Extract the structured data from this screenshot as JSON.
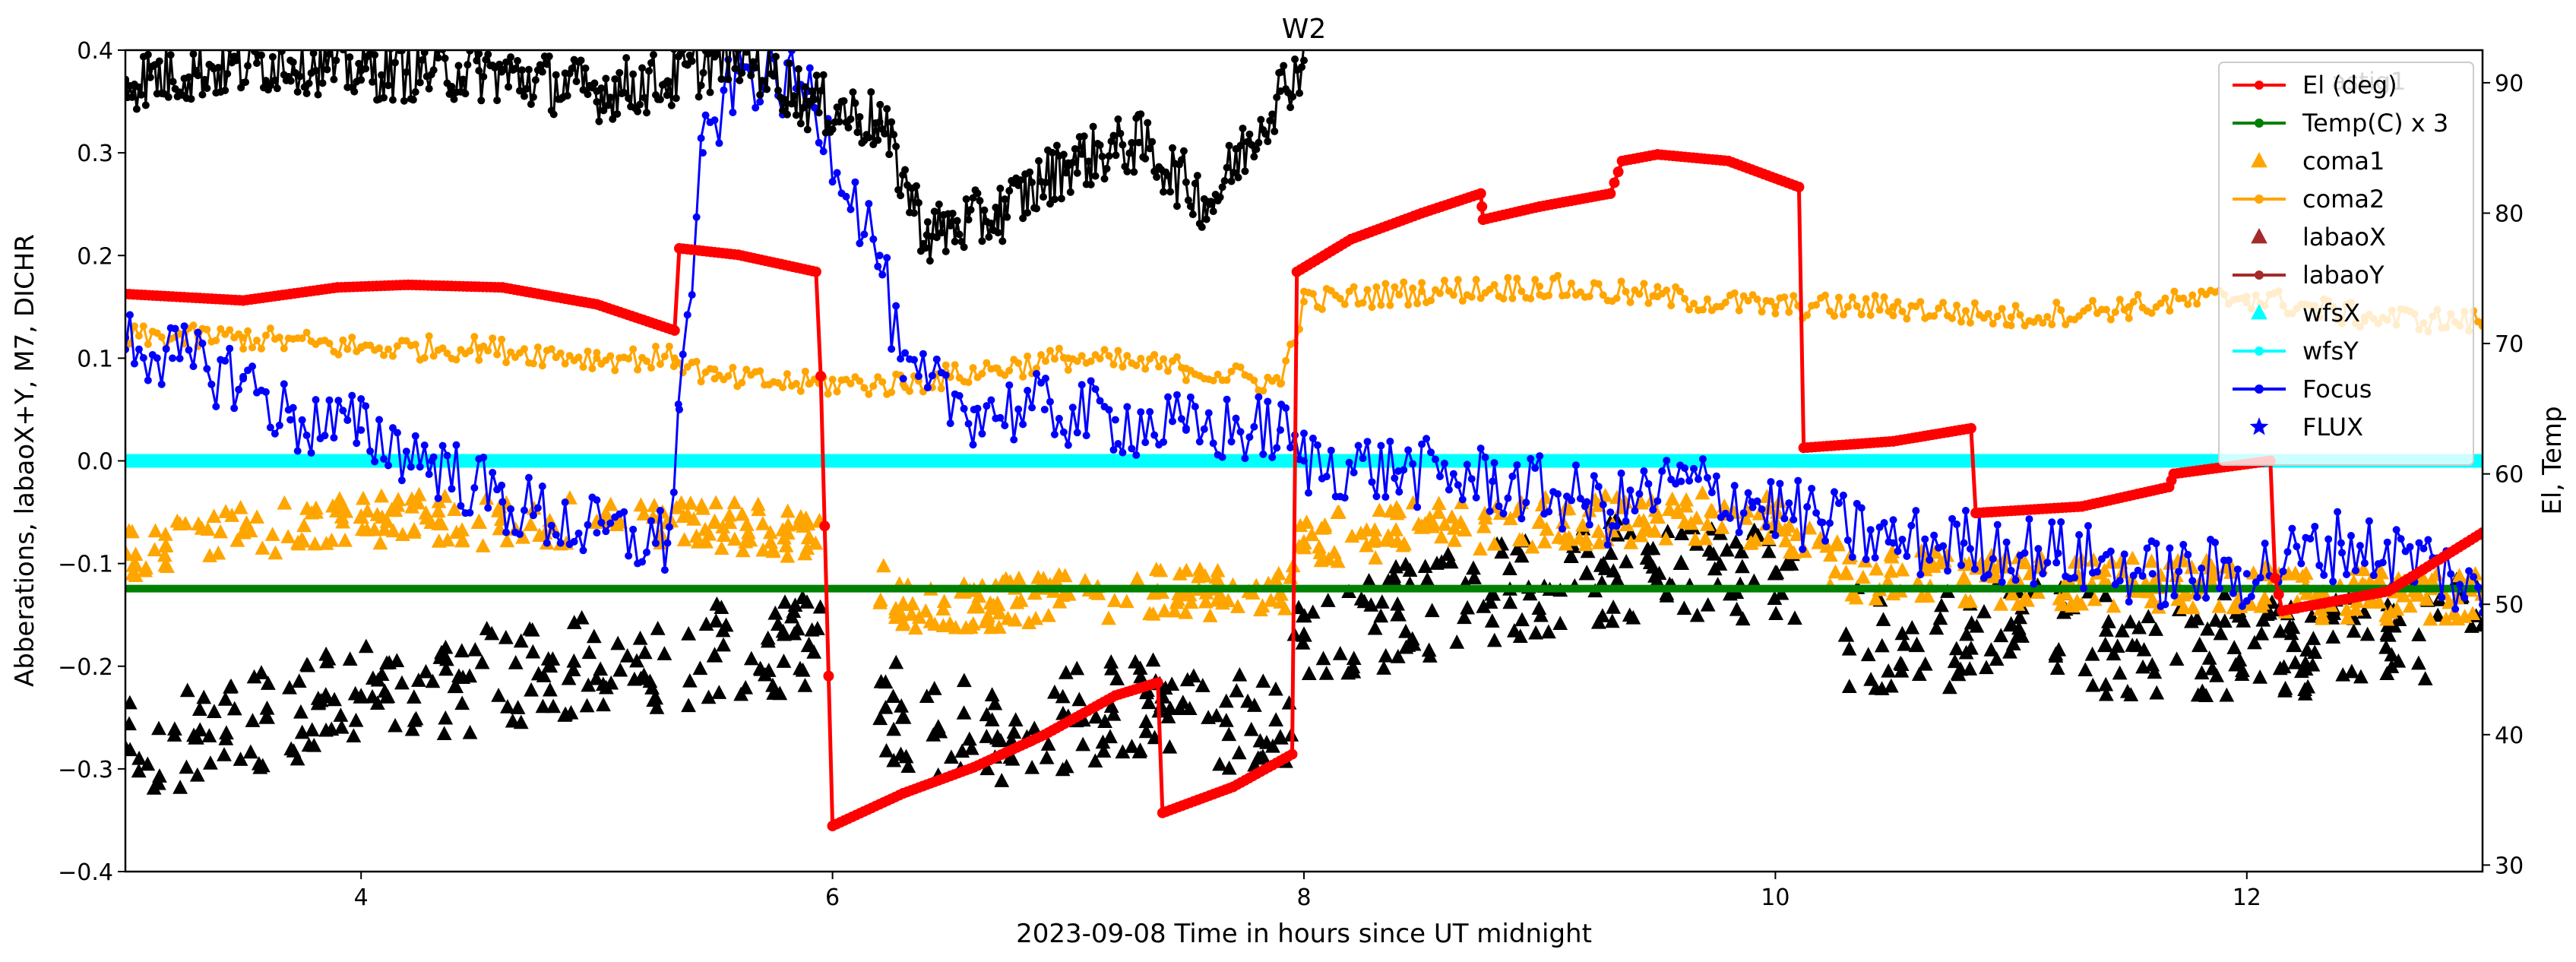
{
  "chart_data": {
    "type": "scatter",
    "title": "W2",
    "xlabel": "2023-09-08  Time in hours since UT midnight",
    "ylabel_left": "Abberations, labaoX+Y, M7, DICHR",
    "ylabel_right": "El, Temp",
    "xlim": [
      3.0,
      13.0
    ],
    "ylim_left": [
      -0.4,
      0.4
    ],
    "ylim_right": [
      29.5,
      92.5
    ],
    "x_ticks": [
      4,
      6,
      8,
      10,
      12
    ],
    "y_ticks_left": [
      "-0.4",
      "-0.3",
      "-0.2",
      "-0.1",
      "0.0",
      "0.1",
      "0.2",
      "0.3",
      "0.4"
    ],
    "y_ticks_right": [
      30,
      40,
      50,
      60,
      70,
      80,
      90
    ],
    "grid": false,
    "legend_placement": "top-right",
    "legend": [
      {
        "label": "El (deg)",
        "marker": "line-dot",
        "color": "#ff0000"
      },
      {
        "label": "Temp(C) x 3",
        "marker": "line-dot",
        "color": "#008000"
      },
      {
        "label": "coma1",
        "marker": "triangle",
        "color": "#ffa500"
      },
      {
        "label": "coma2",
        "marker": "line-dot",
        "color": "#ffa500"
      },
      {
        "label": "labaoX",
        "marker": "triangle",
        "color": "#a52a2a"
      },
      {
        "label": "labaoY",
        "marker": "line-dot",
        "color": "#a52a2a"
      },
      {
        "label": "wfsX",
        "marker": "triangle",
        "color": "#00ffff"
      },
      {
        "label": "wfsY",
        "marker": "line-dot",
        "color": "#00ffff"
      },
      {
        "label": "Focus",
        "marker": "line-dot",
        "color": "#0000ff"
      },
      {
        "label": "FLUX",
        "marker": "star",
        "color": "#0000ff"
      }
    ],
    "hidden_legend_fragment": "astig1",
    "series": [
      {
        "name": "El (deg)",
        "axis": "right",
        "style": "line-dot",
        "color": "#ff0000",
        "x": [
          3.0,
          3.5,
          3.9,
          4.2,
          4.6,
          5.0,
          5.33,
          5.35,
          5.6,
          5.93,
          5.95,
          6.0,
          6.3,
          6.6,
          6.9,
          7.2,
          7.38,
          7.4,
          7.7,
          7.95,
          7.97,
          8.2,
          8.5,
          8.75,
          8.76,
          9.0,
          9.3,
          9.35,
          9.5,
          9.8,
          10.1,
          10.12,
          10.5,
          10.83,
          10.85,
          11.3,
          11.67,
          11.69,
          12.1,
          12.12,
          12.15,
          12.6,
          13.0
        ],
        "y": [
          73.8,
          73.3,
          74.3,
          74.5,
          74.3,
          73.0,
          71.0,
          77.3,
          76.8,
          75.5,
          67.5,
          33.0,
          35.5,
          37.5,
          40.0,
          43.0,
          44.0,
          34.0,
          36.0,
          38.5,
          75.5,
          78.0,
          80.0,
          81.5,
          79.5,
          80.5,
          81.5,
          84.0,
          84.5,
          84.0,
          82.0,
          62.0,
          62.5,
          63.5,
          57.0,
          57.5,
          59.0,
          60.0,
          61.0,
          52.0,
          49.5,
          51.0,
          55.5
        ]
      },
      {
        "name": "Temp(C) x 3",
        "axis": "right",
        "style": "line-dot",
        "color": "#008000",
        "x": [
          3.0,
          13.0
        ],
        "y": [
          51.2,
          51.2
        ]
      },
      {
        "name": "wfsY",
        "axis": "left",
        "style": "line-dot",
        "color": "#00ffff",
        "x": [
          3.0,
          13.0
        ],
        "y": [
          0.0,
          0.0
        ]
      },
      {
        "name": "coma2",
        "axis": "left",
        "style": "line-dot",
        "color": "#ffa500",
        "x": [
          3.0,
          3.5,
          4.0,
          4.5,
          5.0,
          5.33,
          5.5,
          5.9,
          6.3,
          6.7,
          7.0,
          7.5,
          7.9,
          8.0,
          8.5,
          9.0,
          9.5,
          10.0,
          10.5,
          11.0,
          11.5,
          12.0,
          12.5,
          13.0
        ],
        "y": [
          0.12,
          0.12,
          0.11,
          0.11,
          0.1,
          0.1,
          0.08,
          0.075,
          0.075,
          0.09,
          0.1,
          0.09,
          0.075,
          0.155,
          0.165,
          0.17,
          0.16,
          0.15,
          0.15,
          0.14,
          0.15,
          0.16,
          0.14,
          0.135
        ]
      },
      {
        "name": "coma1",
        "axis": "left",
        "style": "triangle",
        "color": "#ffa500",
        "x": [
          3.0,
          3.5,
          4.0,
          4.5,
          5.0,
          5.5,
          5.9,
          6.3,
          6.7,
          7.0,
          7.5,
          7.9,
          8.0,
          8.5,
          9.0,
          9.5,
          10.0,
          10.3,
          10.8,
          11.3,
          11.8,
          12.3,
          13.0
        ],
        "y": [
          -0.09,
          -0.07,
          -0.055,
          -0.06,
          -0.06,
          -0.06,
          -0.075,
          -0.14,
          -0.14,
          -0.13,
          -0.13,
          -0.13,
          -0.08,
          -0.065,
          -0.06,
          -0.055,
          -0.06,
          -0.11,
          -0.115,
          -0.12,
          -0.12,
          -0.13,
          -0.13
        ]
      },
      {
        "name": "Focus",
        "axis": "left",
        "style": "line-dot",
        "color": "#0000ff",
        "x": [
          3.0,
          3.2,
          3.5,
          3.7,
          4.0,
          4.3,
          4.6,
          5.0,
          5.3,
          5.35,
          5.45,
          5.6,
          5.9,
          6.2,
          6.3,
          6.6,
          6.9,
          7.2,
          7.5,
          7.9,
          8.0,
          8.4,
          8.8,
          9.2,
          9.3,
          9.6,
          9.9,
          10.2,
          10.5,
          10.8,
          11.2,
          11.6,
          12.0,
          12.4,
          12.8,
          13.0
        ],
        "y": [
          0.12,
          0.1,
          0.08,
          0.04,
          0.03,
          0.0,
          -0.04,
          -0.07,
          -0.08,
          0.05,
          0.3,
          0.38,
          0.36,
          0.2,
          0.08,
          0.05,
          0.05,
          0.04,
          0.03,
          0.03,
          0.0,
          -0.01,
          -0.02,
          -0.04,
          -0.05,
          -0.02,
          -0.04,
          -0.06,
          -0.08,
          -0.08,
          -0.09,
          -0.11,
          -0.11,
          -0.08,
          -0.1,
          -0.14
        ]
      },
      {
        "name": "M7 (black line)",
        "axis": "left",
        "style": "line-dot",
        "color": "#000000",
        "x": [
          3.0,
          3.3,
          3.7,
          4.0,
          4.5,
          5.0,
          5.3,
          5.6,
          5.9,
          6.2,
          6.4,
          6.7,
          7.0,
          7.3,
          7.6,
          7.9,
          8.0
        ],
        "y": [
          0.37,
          0.38,
          0.39,
          0.38,
          0.38,
          0.36,
          0.37,
          0.4,
          0.35,
          0.33,
          0.22,
          0.24,
          0.29,
          0.31,
          0.25,
          0.36,
          0.39
        ]
      },
      {
        "name": "DICHR (black triangles)",
        "axis": "left",
        "style": "triangle",
        "color": "#000000",
        "x": [
          3.0,
          3.3,
          3.6,
          4.0,
          4.4,
          4.8,
          5.2,
          5.5,
          5.9,
          6.3,
          6.7,
          7.0,
          7.4,
          7.9,
          8.0,
          8.4,
          8.8,
          9.2,
          9.6,
          10.0,
          10.3,
          10.6,
          11.0,
          11.4,
          11.8,
          12.2,
          12.6,
          13.0
        ],
        "y": [
          -0.28,
          -0.27,
          -0.25,
          -0.23,
          -0.22,
          -0.2,
          -0.21,
          -0.19,
          -0.18,
          -0.25,
          -0.27,
          -0.25,
          -0.23,
          -0.27,
          -0.17,
          -0.15,
          -0.13,
          -0.11,
          -0.1,
          -0.11,
          -0.17,
          -0.18,
          -0.16,
          -0.18,
          -0.18,
          -0.18,
          -0.17,
          -0.16
        ]
      }
    ]
  }
}
